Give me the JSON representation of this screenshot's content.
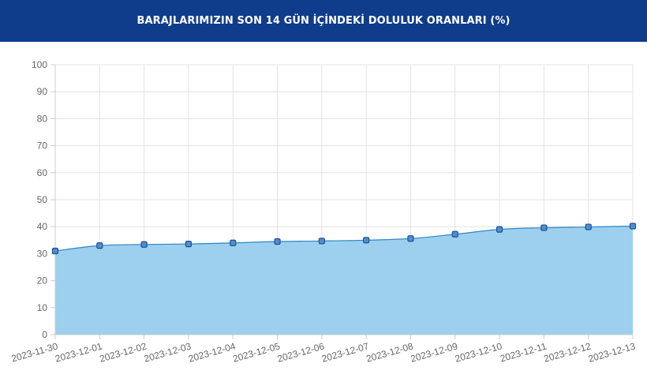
{
  "header": {
    "title": "BARAJLARIMIZIN SON 14 GÜN İÇİNDEKİ DOLULUK ORANLARI (%)"
  },
  "colors": {
    "header_bg": "#0f3d8c",
    "area_fill": "#9dd0ee",
    "line": "#2f86c4",
    "marker_fill": "#4f8fcf",
    "marker_stroke": "#1f4f8f",
    "grid": "#e3e3e3"
  },
  "chart_data": {
    "type": "area",
    "categories": [
      "2023-11-30",
      "2023-12-01",
      "2023-12-02",
      "2023-12-03",
      "2023-12-04",
      "2023-12-05",
      "2023-12-06",
      "2023-12-07",
      "2023-12-08",
      "2023-12-09",
      "2023-12-10",
      "2023-12-11",
      "2023-12-12",
      "2023-12-13"
    ],
    "series": [
      {
        "values": [
          31.0,
          33.0,
          33.4,
          33.6,
          34.0,
          34.5,
          34.7,
          35.0,
          35.6,
          37.2,
          39.0,
          39.6,
          39.9,
          40.2
        ]
      }
    ],
    "ylim": [
      0,
      100
    ],
    "yticks": [
      0,
      10,
      20,
      30,
      40,
      50,
      60,
      70,
      80,
      90,
      100
    ],
    "grid": true,
    "title": "",
    "xlabel": "",
    "ylabel": ""
  }
}
